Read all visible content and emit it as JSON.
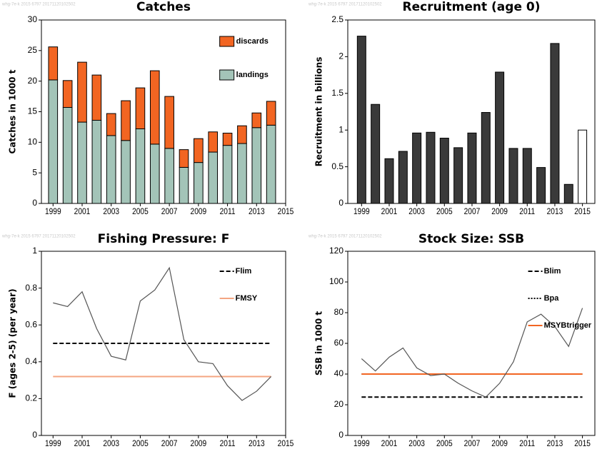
{
  "chart_data": [
    {
      "type": "bar",
      "stacked": true,
      "title": "Catches",
      "watermark": "whg-7e-k 2015 6797 20171120102502",
      "ylabel": "Catches in 1000 t",
      "x": [
        1999,
        2000,
        2001,
        2002,
        2003,
        2004,
        2005,
        2006,
        2007,
        2008,
        2009,
        2010,
        2011,
        2012,
        2013,
        2014
      ],
      "series": [
        {
          "name": "landings",
          "color": "#a3c4b8",
          "values": [
            20.2,
            15.7,
            13.3,
            13.6,
            11.1,
            10.3,
            12.2,
            9.7,
            9.0,
            5.9,
            6.7,
            8.4,
            9.5,
            9.8,
            12.4,
            12.8
          ]
        },
        {
          "name": "discards",
          "color": "#f26522",
          "values": [
            5.4,
            4.4,
            9.8,
            7.4,
            3.6,
            6.5,
            6.7,
            12.0,
            8.5,
            2.9,
            3.9,
            3.3,
            2.0,
            2.9,
            2.4,
            3.9
          ]
        }
      ],
      "xlim": [
        1998.2,
        2015
      ],
      "xticks": [
        1999,
        2001,
        2003,
        2005,
        2007,
        2009,
        2011,
        2013,
        2015
      ],
      "ylim": [
        0,
        30
      ],
      "yticks": [
        0,
        5,
        10,
        15,
        20,
        25,
        30
      ],
      "legend": "top-right"
    },
    {
      "type": "bar",
      "title": "Recruitment (age 0)",
      "watermark": "whg-7e-k 2015 6797 20171120102502",
      "ylabel": "Recruitment in billions",
      "x": [
        1999,
        2000,
        2001,
        2002,
        2003,
        2004,
        2005,
        2006,
        2007,
        2008,
        2009,
        2010,
        2011,
        2012,
        2013,
        2014,
        2015
      ],
      "values": [
        2.28,
        1.35,
        0.61,
        0.71,
        0.96,
        0.97,
        0.89,
        0.76,
        0.96,
        1.24,
        1.79,
        0.75,
        0.75,
        0.49,
        2.18,
        0.26,
        1.0
      ],
      "colors": [
        "#3a3a3a",
        "#3a3a3a",
        "#3a3a3a",
        "#3a3a3a",
        "#3a3a3a",
        "#3a3a3a",
        "#3a3a3a",
        "#3a3a3a",
        "#3a3a3a",
        "#3a3a3a",
        "#3a3a3a",
        "#3a3a3a",
        "#3a3a3a",
        "#3a3a3a",
        "#3a3a3a",
        "#3a3a3a",
        "#ffffff"
      ],
      "xlim": [
        1998,
        2015.9
      ],
      "xticks": [
        1999,
        2001,
        2003,
        2005,
        2007,
        2009,
        2011,
        2013,
        2015
      ],
      "ylim": [
        0,
        2.5
      ],
      "yticks": [
        0,
        0.5,
        1,
        1.5,
        2,
        2.5
      ]
    },
    {
      "type": "line",
      "title": "Fishing Pressure: F",
      "watermark": "whg-7e-k 2015 6797 20171120102502",
      "ylabel": "F (ages 2-5) (per year)",
      "x": [
        1999,
        2000,
        2001,
        2002,
        2003,
        2004,
        2005,
        2006,
        2007,
        2008,
        2009,
        2010,
        2011,
        2012,
        2013,
        2014
      ],
      "values": [
        0.72,
        0.7,
        0.78,
        0.58,
        0.43,
        0.41,
        0.73,
        0.79,
        0.91,
        0.52,
        0.4,
        0.39,
        0.27,
        0.19,
        0.24,
        0.32
      ],
      "color": "#555555",
      "reference_lines": [
        {
          "name": "Flim",
          "value": 0.5,
          "color": "#000000",
          "style": "dashed"
        },
        {
          "name": "FMSY",
          "value": 0.32,
          "color": "#f4a582",
          "style": "solid"
        }
      ],
      "xlim": [
        1998.2,
        2015
      ],
      "xticks": [
        1999,
        2001,
        2003,
        2005,
        2007,
        2009,
        2011,
        2013,
        2015
      ],
      "ylim": [
        0,
        1
      ],
      "yticks": [
        0,
        0.2,
        0.4,
        0.6,
        0.8,
        1
      ],
      "legend": "top-right"
    },
    {
      "type": "line",
      "title": "Stock Size: SSB",
      "watermark": "whg-7e-k 2015 6797 20171120102502",
      "ylabel": "SSB in 1000 t",
      "x": [
        1999,
        2000,
        2001,
        2002,
        2003,
        2004,
        2005,
        2006,
        2007,
        2008,
        2009,
        2010,
        2011,
        2012,
        2013,
        2014,
        2015
      ],
      "values": [
        50,
        42,
        51,
        57,
        44,
        39,
        40,
        34,
        29,
        25,
        34,
        48,
        74,
        79,
        71,
        58,
        83
      ],
      "color": "#555555",
      "reference_lines": [
        {
          "name": "Blim",
          "value": 25,
          "color": "#000000",
          "style": "dashed"
        },
        {
          "name": "Bpa",
          "value": 40,
          "color": "#000000",
          "style": "dotted"
        },
        {
          "name": "MSYBtrigger",
          "value": 40,
          "color": "#f26522",
          "style": "solid"
        }
      ],
      "xlim": [
        1998,
        2015.9
      ],
      "xticks": [
        1999,
        2001,
        2003,
        2005,
        2007,
        2009,
        2011,
        2013,
        2015
      ],
      "ylim": [
        0,
        120
      ],
      "yticks": [
        0,
        20,
        40,
        60,
        80,
        100,
        120
      ],
      "legend": "top-right"
    }
  ]
}
